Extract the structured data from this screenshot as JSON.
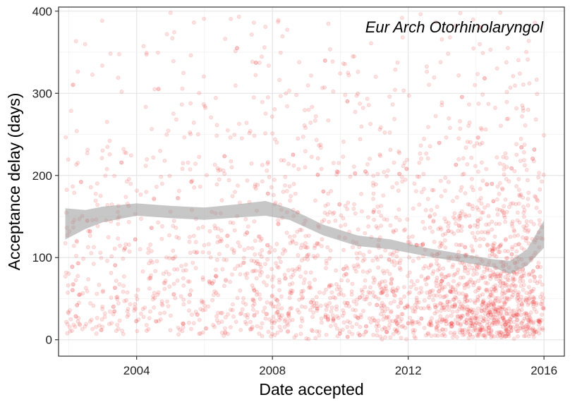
{
  "chart_data": {
    "type": "scatter",
    "annotation": "Eur Arch Otorhinolaryngol",
    "xlabel": "Date accepted",
    "ylabel": "Acceptance delay (days)",
    "xlim": [
      2001.7,
      2016.6
    ],
    "ylim": [
      -20,
      405
    ],
    "xticks": [
      2004,
      2008,
      2012,
      2016
    ],
    "yticks": [
      0,
      100,
      200,
      300,
      400
    ],
    "grid": true,
    "point_color": "#ee3333",
    "point_opacity": 0.15,
    "smooth_color": "#999999",
    "density_profile": [
      {
        "x": 2002.0,
        "density": 0.45
      },
      {
        "x": 2004.0,
        "density": 0.55
      },
      {
        "x": 2006.0,
        "density": 0.6
      },
      {
        "x": 2008.0,
        "density": 0.85
      },
      {
        "x": 2010.0,
        "density": 0.75
      },
      {
        "x": 2012.0,
        "density": 0.9
      },
      {
        "x": 2014.0,
        "density": 1.8
      },
      {
        "x": 2015.0,
        "density": 2.0
      },
      {
        "x": 2016.0,
        "density": 1.2
      }
    ],
    "smooth_series": [
      {
        "x": 2001.9,
        "y": 140,
        "lo": 122,
        "hi": 160
      },
      {
        "x": 2002.5,
        "y": 148,
        "lo": 135,
        "hi": 158
      },
      {
        "x": 2003.0,
        "y": 153,
        "lo": 143,
        "hi": 162
      },
      {
        "x": 2004.0,
        "y": 158,
        "lo": 151,
        "hi": 166
      },
      {
        "x": 2005.0,
        "y": 156,
        "lo": 148,
        "hi": 163
      },
      {
        "x": 2006.0,
        "y": 153,
        "lo": 146,
        "hi": 161
      },
      {
        "x": 2007.0,
        "y": 157,
        "lo": 149,
        "hi": 165
      },
      {
        "x": 2007.8,
        "y": 160,
        "lo": 151,
        "hi": 169
      },
      {
        "x": 2008.5,
        "y": 153,
        "lo": 146,
        "hi": 160
      },
      {
        "x": 2009.5,
        "y": 133,
        "lo": 127,
        "hi": 140
      },
      {
        "x": 2010.5,
        "y": 120,
        "lo": 114,
        "hi": 127
      },
      {
        "x": 2011.5,
        "y": 116,
        "lo": 110,
        "hi": 122
      },
      {
        "x": 2012.5,
        "y": 107,
        "lo": 102,
        "hi": 112
      },
      {
        "x": 2013.5,
        "y": 100,
        "lo": 95,
        "hi": 105
      },
      {
        "x": 2014.5,
        "y": 93,
        "lo": 88,
        "hi": 98
      },
      {
        "x": 2015.0,
        "y": 88,
        "lo": 80,
        "hi": 96
      },
      {
        "x": 2015.5,
        "y": 100,
        "lo": 90,
        "hi": 110
      },
      {
        "x": 2016.0,
        "y": 128,
        "lo": 112,
        "hi": 145
      }
    ]
  }
}
